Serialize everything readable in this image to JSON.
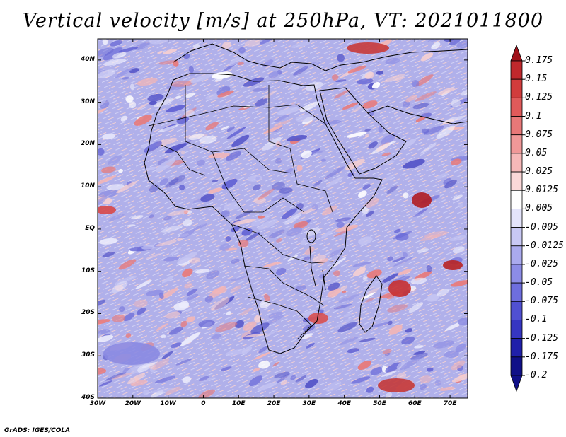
{
  "title": "Vertical velocity [m/s] at 250hPa, VT: 2021011800",
  "credit": "GrADS: IGES/COLA",
  "map": {
    "lon_range": [
      -30,
      75
    ],
    "lat_range": [
      -40,
      45
    ],
    "lat_labels": [
      {
        "value": 40,
        "text": "40N"
      },
      {
        "value": 30,
        "text": "30N"
      },
      {
        "value": 20,
        "text": "20N"
      },
      {
        "value": 10,
        "text": "10N"
      },
      {
        "value": 0,
        "text": "EQ"
      },
      {
        "value": -10,
        "text": "10S"
      },
      {
        "value": -20,
        "text": "20S"
      },
      {
        "value": -30,
        "text": "30S"
      },
      {
        "value": -40,
        "text": "40S"
      }
    ],
    "lon_labels": [
      {
        "value": -30,
        "text": "30W"
      },
      {
        "value": -20,
        "text": "20W"
      },
      {
        "value": -10,
        "text": "10W"
      },
      {
        "value": 0,
        "text": "0"
      },
      {
        "value": 10,
        "text": "10E"
      },
      {
        "value": 20,
        "text": "20E"
      },
      {
        "value": 30,
        "text": "30E"
      },
      {
        "value": 40,
        "text": "40E"
      },
      {
        "value": 50,
        "text": "50E"
      },
      {
        "value": 60,
        "text": "60E"
      },
      {
        "value": 70,
        "text": "70E"
      }
    ]
  },
  "colorbar": {
    "labels": [
      "0.175",
      "0.15",
      "0.125",
      "0.1",
      "0.075",
      "0.05",
      "0.025",
      "0.0125",
      "0.005",
      "-0.005",
      "-0.0125",
      "-0.025",
      "-0.05",
      "-0.075",
      "-0.1",
      "-0.125",
      "-0.175",
      "-0.2"
    ],
    "colors": [
      "#a0121a",
      "#c0282c",
      "#d23c3c",
      "#e05a5a",
      "#e87878",
      "#f09898",
      "#f6b8b8",
      "#fbd8d8",
      "#ffffff",
      "#e4e4fb",
      "#c8c8f4",
      "#aaaaee",
      "#8c8ce6",
      "#6e6ede",
      "#5050d2",
      "#3636c2",
      "#2020aa",
      "#101088"
    ]
  }
}
